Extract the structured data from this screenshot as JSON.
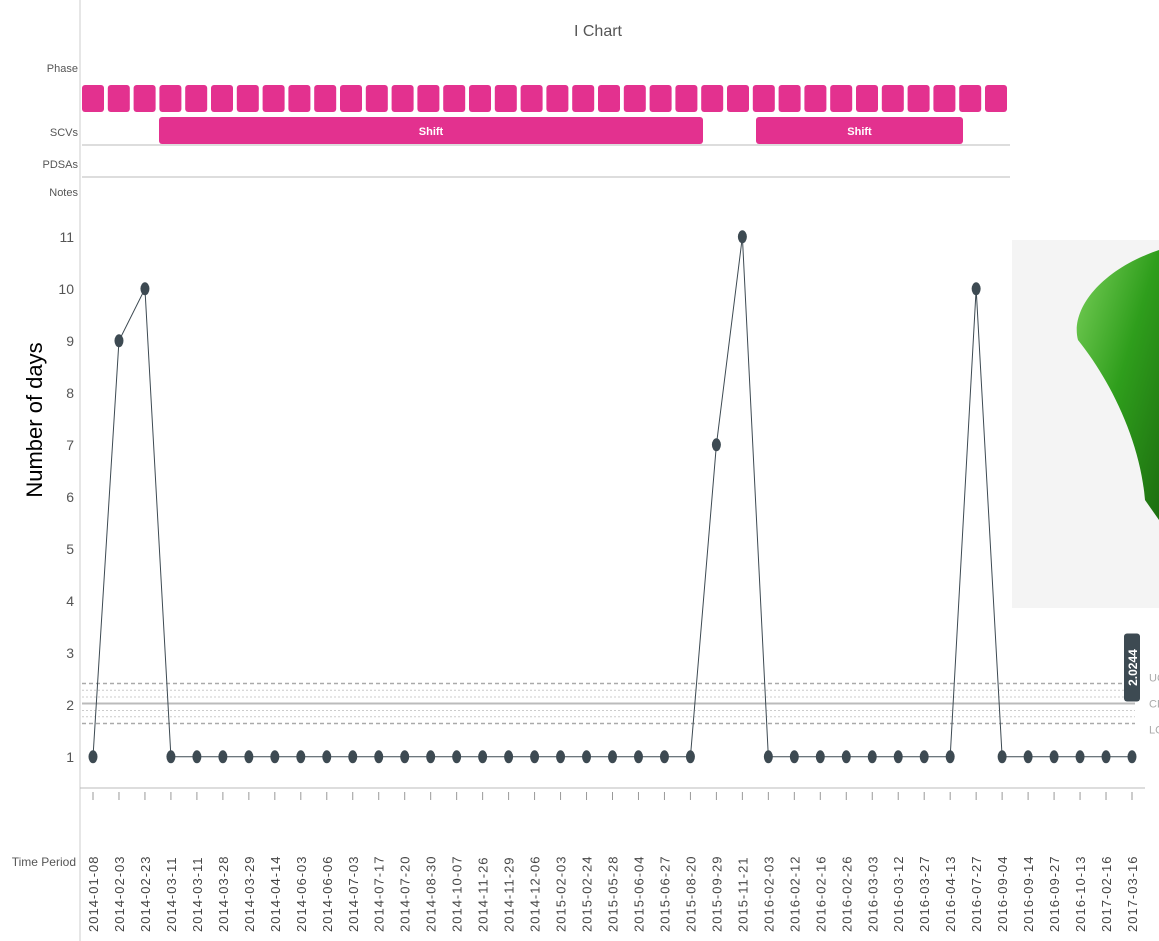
{
  "chart_data": {
    "type": "line",
    "title": "I Chart",
    "y_label": "Number of days",
    "x_label": "Time Period",
    "row_labels": {
      "phase": "Phase",
      "scvs": "SCVs",
      "pdsas": "PDSAs",
      "notes": "Notes"
    },
    "scvs": [
      {
        "label": "Shift"
      },
      {
        "label": "Shift"
      }
    ],
    "categories": [
      "2014-01-08",
      "2014-02-03",
      "2014-02-23",
      "2014-03-11",
      "2014-03-11",
      "2014-03-28",
      "2014-03-29",
      "2014-04-14",
      "2014-06-03",
      "2014-06-06",
      "2014-07-03",
      "2014-07-17",
      "2014-07-20",
      "2014-08-30",
      "2014-10-07",
      "2014-11-26",
      "2014-11-29",
      "2014-12-06",
      "2015-02-03",
      "2015-02-24",
      "2015-05-28",
      "2015-06-04",
      "2015-06-27",
      "2015-08-20",
      "2015-09-29",
      "2015-11-21",
      "2016-02-03",
      "2016-02-12",
      "2016-02-16",
      "2016-02-26",
      "2016-03-03",
      "2016-03-12",
      "2016-03-27",
      "2016-04-13",
      "2016-07-27",
      "2016-09-04",
      "2016-09-14",
      "2016-09-27",
      "2016-10-13",
      "2017-02-16",
      "2017-03-16"
    ],
    "series": [
      {
        "name": "Number of days",
        "color": "#3d4a52",
        "values": [
          1,
          9,
          10,
          1,
          1,
          1,
          1,
          1,
          1,
          1,
          1,
          1,
          1,
          1,
          1,
          1,
          1,
          1,
          1,
          1,
          1,
          1,
          1,
          1,
          7,
          11,
          1,
          1,
          1,
          1,
          1,
          1,
          1,
          1,
          10,
          1,
          1,
          1,
          1,
          1,
          1
        ]
      }
    ],
    "ylim": [
      0.4,
      11.9
    ],
    "yticks": [
      1,
      2,
      3,
      4,
      5,
      6,
      7,
      8,
      9,
      10,
      11
    ],
    "control_lines": [
      {
        "label": "UC",
        "value": 2.41,
        "style": "dashed"
      },
      {
        "label": "CL",
        "value": 2.0244,
        "style": "solid"
      },
      {
        "label": "LC",
        "value": 1.64,
        "style": "dashed"
      }
    ],
    "sigma_lines": [
      2.28,
      2.15,
      1.89,
      1.77
    ],
    "center_badge": "2.0244"
  }
}
